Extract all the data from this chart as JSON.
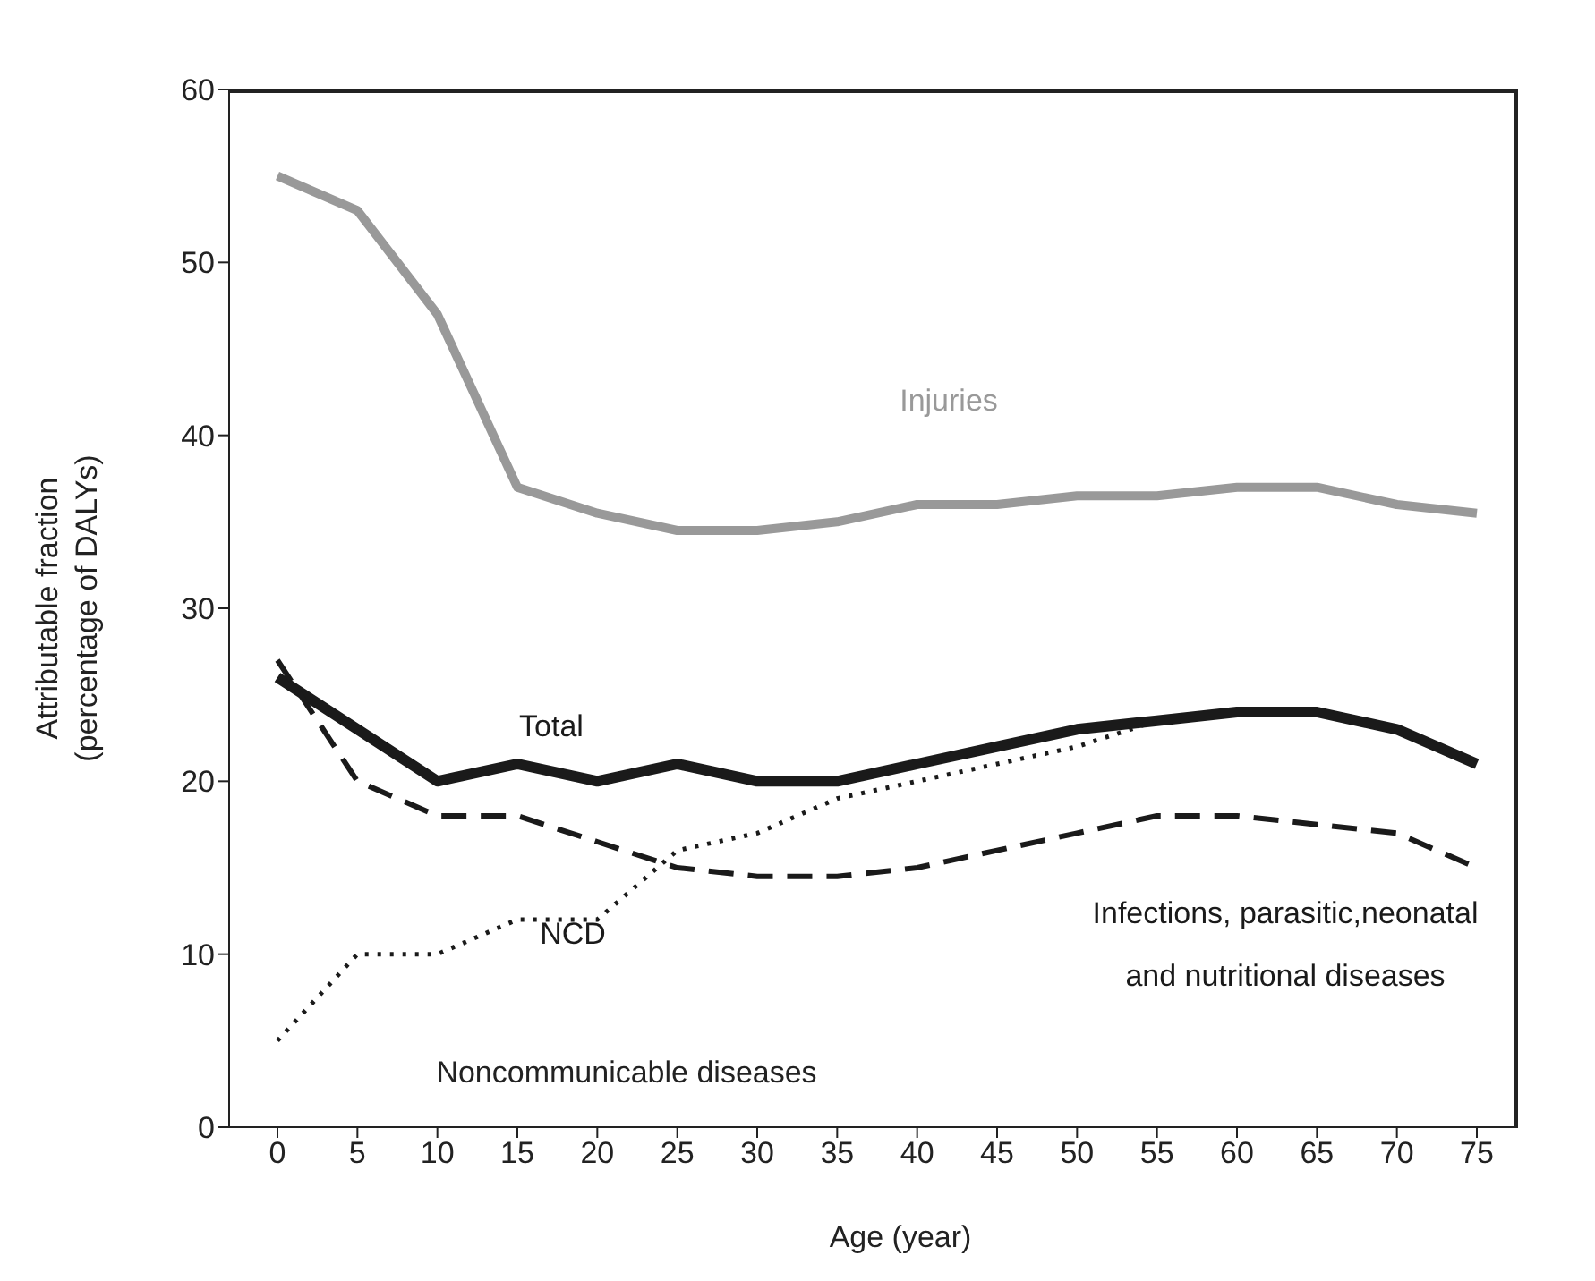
{
  "chart_data": {
    "type": "line",
    "xlabel": "Age (year)",
    "ylabel": "Attributable fraction (percentage of DALYs)",
    "categories": [
      "0",
      "5",
      "10",
      "15",
      "20",
      "25",
      "30",
      "35",
      "40",
      "45",
      "50",
      "55",
      "60",
      "65",
      "70",
      "75"
    ],
    "ylim": [
      0,
      60
    ],
    "yticks": [
      0,
      10,
      20,
      30,
      40,
      50,
      60
    ],
    "annotations": [
      "Noncommunicable diseases"
    ],
    "series": [
      {
        "name": "Injuries",
        "color": "#999999",
        "line_style": "solid",
        "values": [
          55,
          53,
          47,
          37,
          35.5,
          34.5,
          34.5,
          35,
          36,
          36,
          36.5,
          36.5,
          37,
          37,
          36,
          35.5
        ]
      },
      {
        "name": "Total",
        "color": "#1a1a1a",
        "line_style": "solid",
        "values": [
          26,
          23,
          20,
          21,
          20,
          21,
          20,
          20,
          21,
          22,
          23,
          23.5,
          24,
          24,
          23,
          21
        ]
      },
      {
        "name": "Infections, parasitic,neonatal and nutritional diseases",
        "color": "#1a1a1a",
        "line_style": "dashed",
        "values": [
          27,
          20,
          18,
          18,
          16.5,
          15,
          14.5,
          14.5,
          15,
          16,
          17,
          18,
          18,
          17.5,
          17,
          15
        ]
      },
      {
        "name": "NCD",
        "color": "#1a1a1a",
        "line_style": "dotted",
        "values": [
          5,
          10,
          10,
          12,
          12,
          16,
          17,
          19,
          20,
          21,
          22,
          23.5,
          null,
          null,
          null,
          null
        ]
      }
    ]
  }
}
